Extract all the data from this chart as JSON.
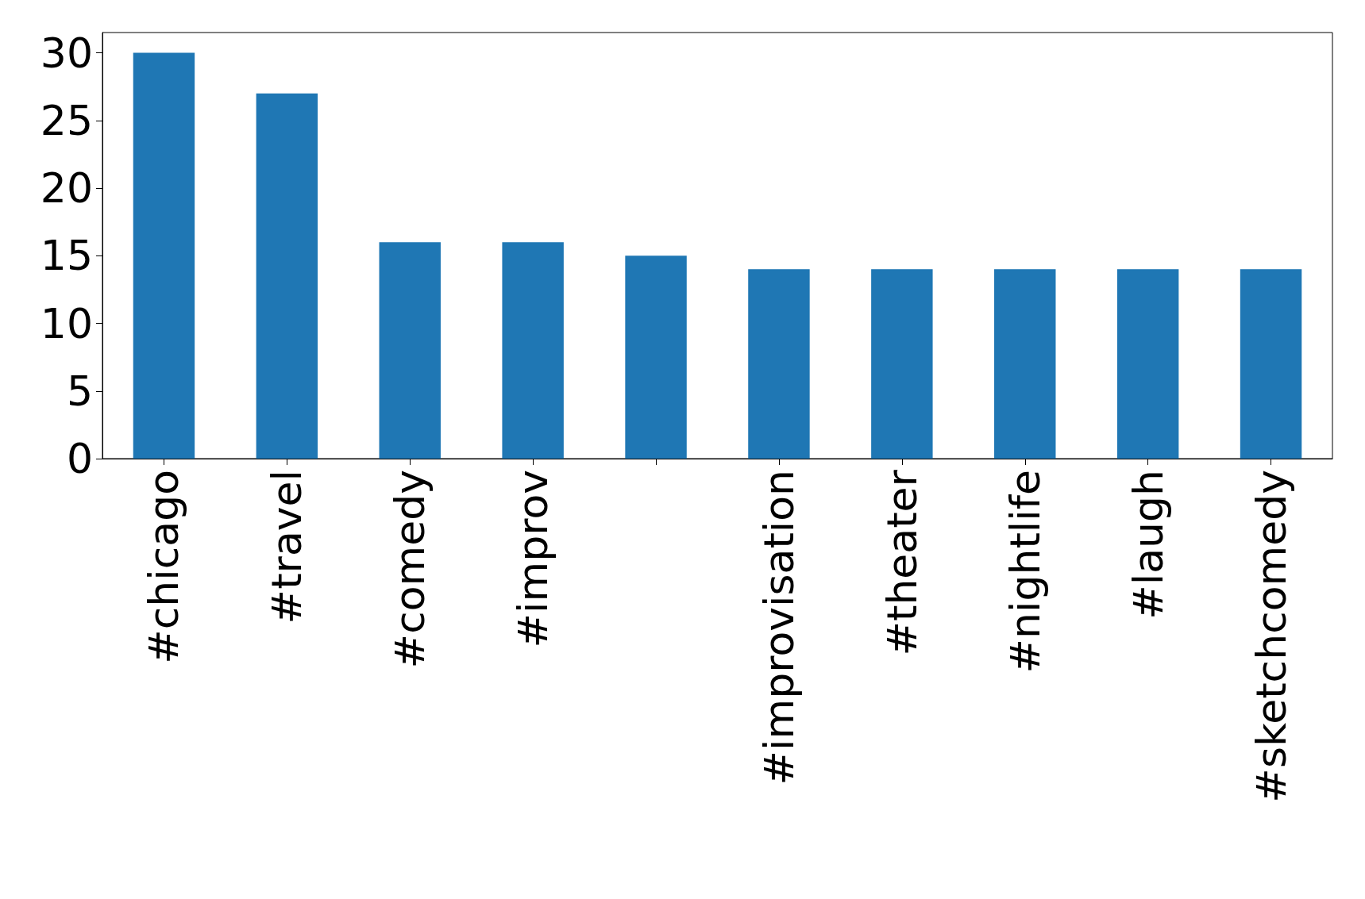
{
  "chart_data": {
    "type": "bar",
    "categories": [
      "#chicago",
      "#travel",
      "#comedy",
      "#improv",
      null,
      "#improvisation",
      "#theater",
      "#nightlife",
      "#laugh",
      "#sketchcomedy"
    ],
    "values": [
      30,
      27,
      16,
      16,
      15,
      14,
      14,
      14,
      14,
      14
    ],
    "color": "#1f77b4",
    "ylim": [
      0,
      31.5
    ],
    "yticks": [
      0,
      5,
      10,
      15,
      20,
      25,
      30
    ],
    "grid": false
  }
}
